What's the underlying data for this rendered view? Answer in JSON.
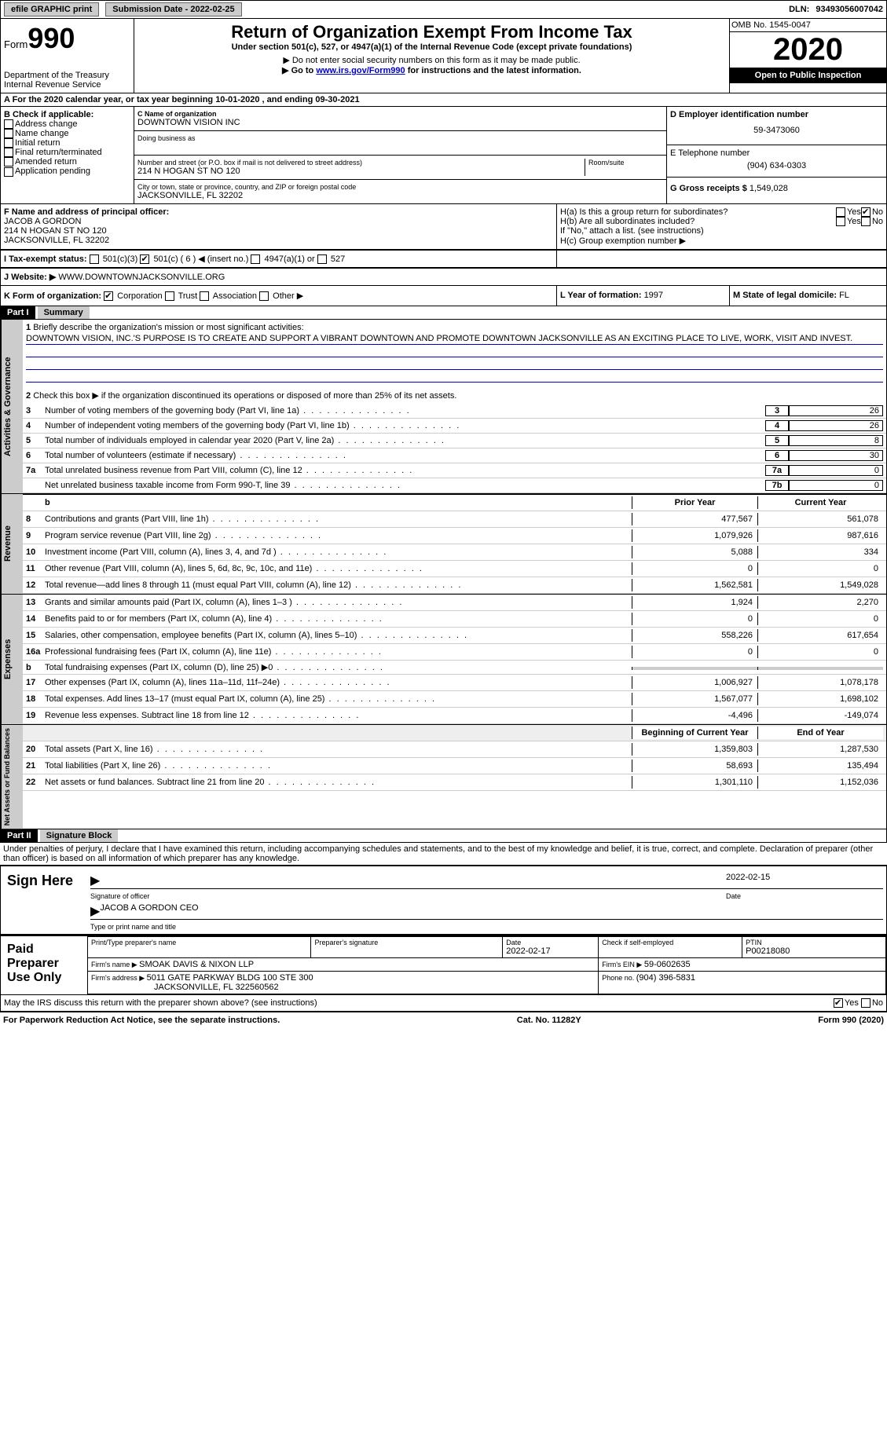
{
  "topbar": {
    "efile": "efile GRAPHIC print",
    "submission_label": "Submission Date - ",
    "submission_date": "2022-02-25",
    "dln_label": "DLN: ",
    "dln": "93493056007042"
  },
  "header": {
    "form_word": "Form",
    "form_num": "990",
    "dept": "Department of the Treasury",
    "irs": "Internal Revenue Service",
    "title": "Return of Organization Exempt From Income Tax",
    "subtitle": "Under section 501(c), 527, or 4947(a)(1) of the Internal Revenue Code (except private foundations)",
    "note1": "▶ Do not enter social security numbers on this form as it may be made public.",
    "note2_pre": "▶ Go to ",
    "note2_link": "www.irs.gov/Form990",
    "note2_post": " for instructions and the latest information.",
    "omb": "OMB No. 1545-0047",
    "year": "2020",
    "open": "Open to Public Inspection"
  },
  "line_a": "A For the 2020 calendar year, or tax year beginning 10-01-2020   , and ending 09-30-2021",
  "section_b": {
    "label": "B Check if applicable:",
    "opts": [
      "Address change",
      "Name change",
      "Initial return",
      "Final return/terminated",
      "Amended return",
      "Application pending"
    ]
  },
  "section_c": {
    "name_label": "C Name of organization",
    "name": "DOWNTOWN VISION INC",
    "dba_label": "Doing business as",
    "addr_label": "Number and street (or P.O. box if mail is not delivered to street address)",
    "room_label": "Room/suite",
    "addr": "214 N HOGAN ST NO 120",
    "city_label": "City or town, state or province, country, and ZIP or foreign postal code",
    "city": "JACKSONVILLE, FL  32202"
  },
  "section_d": {
    "label": "D Employer identification number",
    "ein": "59-3473060"
  },
  "section_e": {
    "label": "E Telephone number",
    "phone": "(904) 634-0303"
  },
  "section_g": {
    "label": "G Gross receipts $ ",
    "amount": "1,549,028"
  },
  "section_f": {
    "label": "F  Name and address of principal officer:",
    "name": "JACOB A GORDON",
    "addr1": "214 N HOGAN ST NO 120",
    "addr2": "JACKSONVILLE, FL  32202"
  },
  "section_h": {
    "ha": "H(a)  Is this a group return for subordinates?",
    "hb": "H(b)  Are all subordinates included?",
    "hb_note": "If \"No,\" attach a list. (see instructions)",
    "hc": "H(c)  Group exemption number ▶",
    "yes": "Yes",
    "no": "No"
  },
  "line_i": {
    "label": "I    Tax-exempt status:",
    "o1": "501(c)(3)",
    "o2": "501(c) ( 6 ) ◀ (insert no.)",
    "o3": "4947(a)(1) or",
    "o4": "527"
  },
  "line_j": {
    "label": "J    Website: ▶ ",
    "site": "WWW.DOWNTOWNJACKSONVILLE.ORG"
  },
  "line_k": {
    "label": "K Form of organization:",
    "o1": "Corporation",
    "o2": "Trust",
    "o3": "Association",
    "o4": "Other ▶"
  },
  "line_l": {
    "label": "L Year of formation: ",
    "val": "1997"
  },
  "line_m": {
    "label": "M State of legal domicile: ",
    "val": "FL"
  },
  "part1": {
    "header": "Part I",
    "title": "Summary",
    "q1": "Briefly describe the organization's mission or most significant activities:",
    "mission": "DOWNTOWN VISION, INC.'S PURPOSE IS TO CREATE AND SUPPORT A VIBRANT DOWNTOWN AND PROMOTE DOWNTOWN JACKSONVILLE AS AN EXCITING PLACE TO LIVE, WORK, VISIT AND INVEST.",
    "q2": "Check this box ▶      if the organization discontinued its operations or disposed of more than 25% of its net assets.",
    "side1": "Activities & Governance",
    "side2": "Revenue",
    "side3": "Expenses",
    "side4": "Net Assets or Fund Balances",
    "lines_gov": [
      {
        "n": "3",
        "d": "Number of voting members of the governing body (Part VI, line 1a)",
        "box": "3",
        "v": "26"
      },
      {
        "n": "4",
        "d": "Number of independent voting members of the governing body (Part VI, line 1b)",
        "box": "4",
        "v": "26"
      },
      {
        "n": "5",
        "d": "Total number of individuals employed in calendar year 2020 (Part V, line 2a)",
        "box": "5",
        "v": "8"
      },
      {
        "n": "6",
        "d": "Total number of volunteers (estimate if necessary)",
        "box": "6",
        "v": "30"
      },
      {
        "n": "7a",
        "d": "Total unrelated business revenue from Part VIII, column (C), line 12",
        "box": "7a",
        "v": "0"
      },
      {
        "n": "",
        "d": "Net unrelated business taxable income from Form 990-T, line 39",
        "box": "7b",
        "v": "0"
      }
    ],
    "col_prior": "Prior Year",
    "col_current": "Current Year",
    "col_beg": "Beginning of Current Year",
    "col_end": "End of Year",
    "lines_rev": [
      {
        "n": "8",
        "d": "Contributions and grants (Part VIII, line 1h)",
        "p": "477,567",
        "c": "561,078"
      },
      {
        "n": "9",
        "d": "Program service revenue (Part VIII, line 2g)",
        "p": "1,079,926",
        "c": "987,616"
      },
      {
        "n": "10",
        "d": "Investment income (Part VIII, column (A), lines 3, 4, and 7d )",
        "p": "5,088",
        "c": "334"
      },
      {
        "n": "11",
        "d": "Other revenue (Part VIII, column (A), lines 5, 6d, 8c, 9c, 10c, and 11e)",
        "p": "0",
        "c": "0"
      },
      {
        "n": "12",
        "d": "Total revenue—add lines 8 through 11 (must equal Part VIII, column (A), line 12)",
        "p": "1,562,581",
        "c": "1,549,028"
      }
    ],
    "lines_exp": [
      {
        "n": "13",
        "d": "Grants and similar amounts paid (Part IX, column (A), lines 1–3 )",
        "p": "1,924",
        "c": "2,270"
      },
      {
        "n": "14",
        "d": "Benefits paid to or for members (Part IX, column (A), line 4)",
        "p": "0",
        "c": "0"
      },
      {
        "n": "15",
        "d": "Salaries, other compensation, employee benefits (Part IX, column (A), lines 5–10)",
        "p": "558,226",
        "c": "617,654"
      },
      {
        "n": "16a",
        "d": "Professional fundraising fees (Part IX, column (A), line 11e)",
        "p": "0",
        "c": "0"
      },
      {
        "n": "b",
        "d": "Total fundraising expenses (Part IX, column (D), line 25) ▶0",
        "p": "",
        "c": "",
        "shaded": true
      },
      {
        "n": "17",
        "d": "Other expenses (Part IX, column (A), lines 11a–11d, 11f–24e)",
        "p": "1,006,927",
        "c": "1,078,178"
      },
      {
        "n": "18",
        "d": "Total expenses. Add lines 13–17 (must equal Part IX, column (A), line 25)",
        "p": "1,567,077",
        "c": "1,698,102"
      },
      {
        "n": "19",
        "d": "Revenue less expenses. Subtract line 18 from line 12",
        "p": "-4,496",
        "c": "-149,074"
      }
    ],
    "lines_net": [
      {
        "n": "20",
        "d": "Total assets (Part X, line 16)",
        "p": "1,359,803",
        "c": "1,287,530"
      },
      {
        "n": "21",
        "d": "Total liabilities (Part X, line 26)",
        "p": "58,693",
        "c": "135,494"
      },
      {
        "n": "22",
        "d": "Net assets or fund balances. Subtract line 21 from line 20",
        "p": "1,301,110",
        "c": "1,152,036"
      }
    ]
  },
  "part2": {
    "header": "Part II",
    "title": "Signature Block",
    "penalty": "Under penalties of perjury, I declare that I have examined this return, including accompanying schedules and statements, and to the best of my knowledge and belief, it is true, correct, and complete. Declaration of preparer (other than officer) is based on all information of which preparer has any knowledge.",
    "sign_here": "Sign Here",
    "sig_officer": "Signature of officer",
    "sig_date": "2022-02-15",
    "date_label": "Date",
    "officer_name": "JACOB A GORDON  CEO",
    "type_label": "Type or print name and title",
    "paid_label": "Paid Preparer Use Only",
    "prep_name_label": "Print/Type preparer's name",
    "prep_sig_label": "Preparer's signature",
    "prep_date_label": "Date",
    "prep_date": "2022-02-17",
    "self_emp": "Check       if self-employed",
    "ptin_label": "PTIN",
    "ptin": "P00218080",
    "firm_name_label": "Firm's name    ▶ ",
    "firm_name": "SMOAK DAVIS & NIXON LLP",
    "firm_ein_label": "Firm's EIN ▶ ",
    "firm_ein": "59-0602635",
    "firm_addr_label": "Firm's address ▶ ",
    "firm_addr1": "5011 GATE PARKWAY BLDG 100 STE 300",
    "firm_addr2": "JACKSONVILLE, FL  322560562",
    "phone_label": "Phone no. ",
    "phone": "(904) 396-5831",
    "discuss": "May the IRS discuss this return with the preparer shown above? (see instructions)",
    "yes": "Yes",
    "no": "No"
  },
  "footer": {
    "left": "For Paperwork Reduction Act Notice, see the separate instructions.",
    "mid": "Cat. No. 11282Y",
    "right": "Form 990 (2020)"
  }
}
